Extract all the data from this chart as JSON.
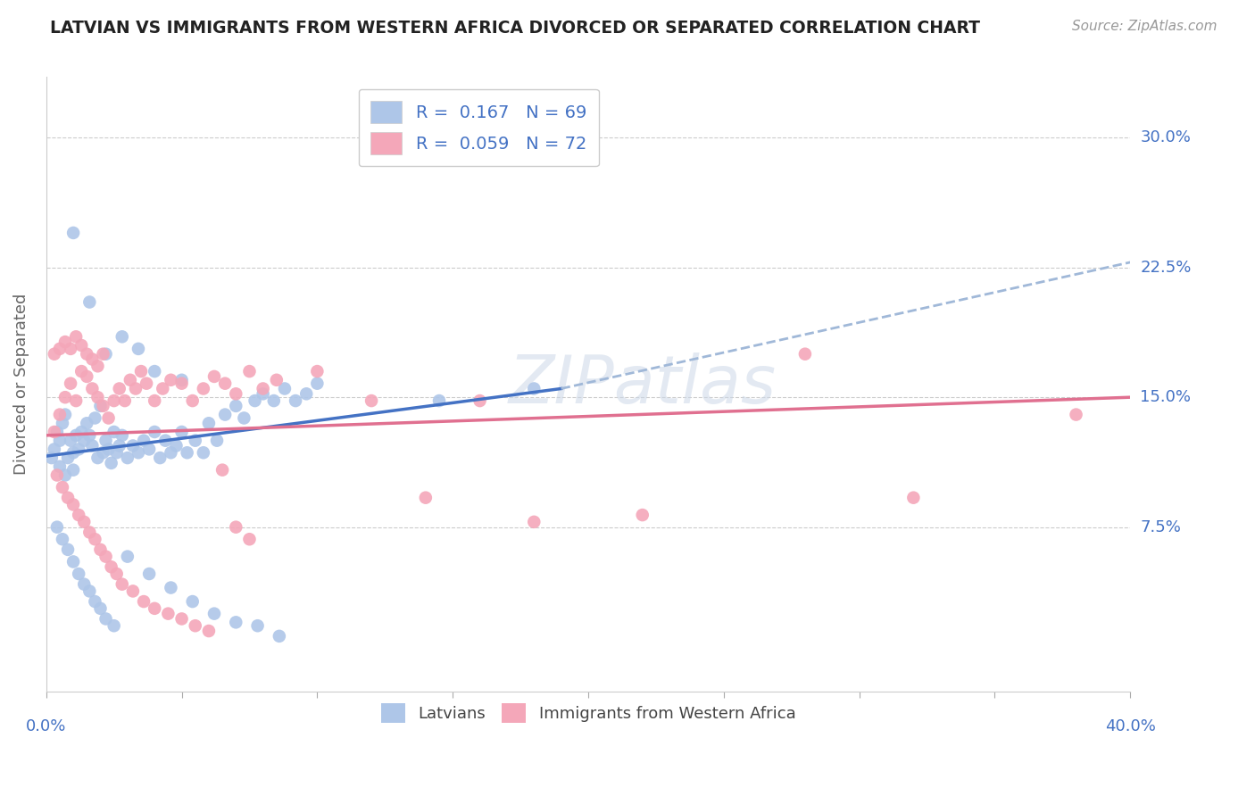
{
  "title": "LATVIAN VS IMMIGRANTS FROM WESTERN AFRICA DIVORCED OR SEPARATED CORRELATION CHART",
  "source": "Source: ZipAtlas.com",
  "ylabel": "Divorced or Separated",
  "xlim": [
    0.0,
    0.4
  ],
  "ylim": [
    -0.02,
    0.335
  ],
  "yticks": [
    0.075,
    0.15,
    0.225,
    0.3
  ],
  "ytick_labels": [
    "7.5%",
    "15.0%",
    "22.5%",
    "30.0%"
  ],
  "xticks": [
    0.0,
    0.05,
    0.1,
    0.15,
    0.2,
    0.25,
    0.3,
    0.35,
    0.4
  ],
  "R_latvian": 0.167,
  "N_latvian": 69,
  "R_wa": 0.059,
  "N_wa": 72,
  "color_latvian": "#aec6e8",
  "color_wa": "#f4a7b9",
  "line_color_latvian": "#4472c4",
  "line_color_wa": "#e07090",
  "line_color_latvian_dash": "#a0b8d8",
  "latvian_x": [
    0.002,
    0.003,
    0.004,
    0.005,
    0.005,
    0.006,
    0.007,
    0.007,
    0.008,
    0.009,
    0.01,
    0.01,
    0.011,
    0.012,
    0.013,
    0.014,
    0.015,
    0.016,
    0.017,
    0.018,
    0.019,
    0.02,
    0.021,
    0.022,
    0.023,
    0.024,
    0.025,
    0.026,
    0.027,
    0.028,
    0.03,
    0.032,
    0.034,
    0.036,
    0.038,
    0.04,
    0.042,
    0.044,
    0.046,
    0.048,
    0.05,
    0.052,
    0.055,
    0.058,
    0.06,
    0.063,
    0.066,
    0.07,
    0.073,
    0.077,
    0.08,
    0.084,
    0.088,
    0.092,
    0.096,
    0.1,
    0.004,
    0.006,
    0.008,
    0.01,
    0.012,
    0.014,
    0.016,
    0.018,
    0.02,
    0.022,
    0.025,
    0.145,
    0.18
  ],
  "latvian_y": [
    0.115,
    0.12,
    0.13,
    0.125,
    0.11,
    0.135,
    0.14,
    0.105,
    0.115,
    0.125,
    0.108,
    0.118,
    0.128,
    0.12,
    0.13,
    0.125,
    0.135,
    0.128,
    0.122,
    0.138,
    0.115,
    0.145,
    0.118,
    0.125,
    0.12,
    0.112,
    0.13,
    0.118,
    0.122,
    0.128,
    0.115,
    0.122,
    0.118,
    0.125,
    0.12,
    0.13,
    0.115,
    0.125,
    0.118,
    0.122,
    0.13,
    0.118,
    0.125,
    0.118,
    0.135,
    0.125,
    0.14,
    0.145,
    0.138,
    0.148,
    0.152,
    0.148,
    0.155,
    0.148,
    0.152,
    0.158,
    0.075,
    0.068,
    0.062,
    0.055,
    0.048,
    0.042,
    0.038,
    0.032,
    0.028,
    0.022,
    0.018,
    0.148,
    0.155
  ],
  "latvian_y_outliers": [
    0.245,
    0.205,
    0.175,
    0.185,
    0.178,
    0.165,
    0.16,
    0.058,
    0.048,
    0.04,
    0.032,
    0.025,
    0.02,
    0.018,
    0.012
  ],
  "latvian_x_outliers": [
    0.01,
    0.016,
    0.022,
    0.028,
    0.034,
    0.04,
    0.05,
    0.03,
    0.038,
    0.046,
    0.054,
    0.062,
    0.07,
    0.078,
    0.086
  ],
  "wa_x": [
    0.003,
    0.005,
    0.007,
    0.009,
    0.011,
    0.013,
    0.015,
    0.017,
    0.019,
    0.021,
    0.023,
    0.025,
    0.027,
    0.029,
    0.031,
    0.033,
    0.035,
    0.037,
    0.04,
    0.043,
    0.046,
    0.05,
    0.054,
    0.058,
    0.062,
    0.066,
    0.07,
    0.075,
    0.08,
    0.085,
    0.004,
    0.006,
    0.008,
    0.01,
    0.012,
    0.014,
    0.016,
    0.018,
    0.02,
    0.022,
    0.024,
    0.026,
    0.028,
    0.032,
    0.036,
    0.04,
    0.045,
    0.05,
    0.055,
    0.06,
    0.003,
    0.005,
    0.007,
    0.009,
    0.011,
    0.013,
    0.015,
    0.017,
    0.019,
    0.021,
    0.1,
    0.12,
    0.14,
    0.16,
    0.18,
    0.22,
    0.28,
    0.32,
    0.38,
    0.065,
    0.07,
    0.075
  ],
  "wa_y": [
    0.13,
    0.14,
    0.15,
    0.158,
    0.148,
    0.165,
    0.162,
    0.155,
    0.15,
    0.145,
    0.138,
    0.148,
    0.155,
    0.148,
    0.16,
    0.155,
    0.165,
    0.158,
    0.148,
    0.155,
    0.16,
    0.158,
    0.148,
    0.155,
    0.162,
    0.158,
    0.152,
    0.165,
    0.155,
    0.16,
    0.105,
    0.098,
    0.092,
    0.088,
    0.082,
    0.078,
    0.072,
    0.068,
    0.062,
    0.058,
    0.052,
    0.048,
    0.042,
    0.038,
    0.032,
    0.028,
    0.025,
    0.022,
    0.018,
    0.015,
    0.175,
    0.178,
    0.182,
    0.178,
    0.185,
    0.18,
    0.175,
    0.172,
    0.168,
    0.175,
    0.165,
    0.148,
    0.092,
    0.148,
    0.078,
    0.082,
    0.175,
    0.092,
    0.14,
    0.108,
    0.075,
    0.068
  ]
}
